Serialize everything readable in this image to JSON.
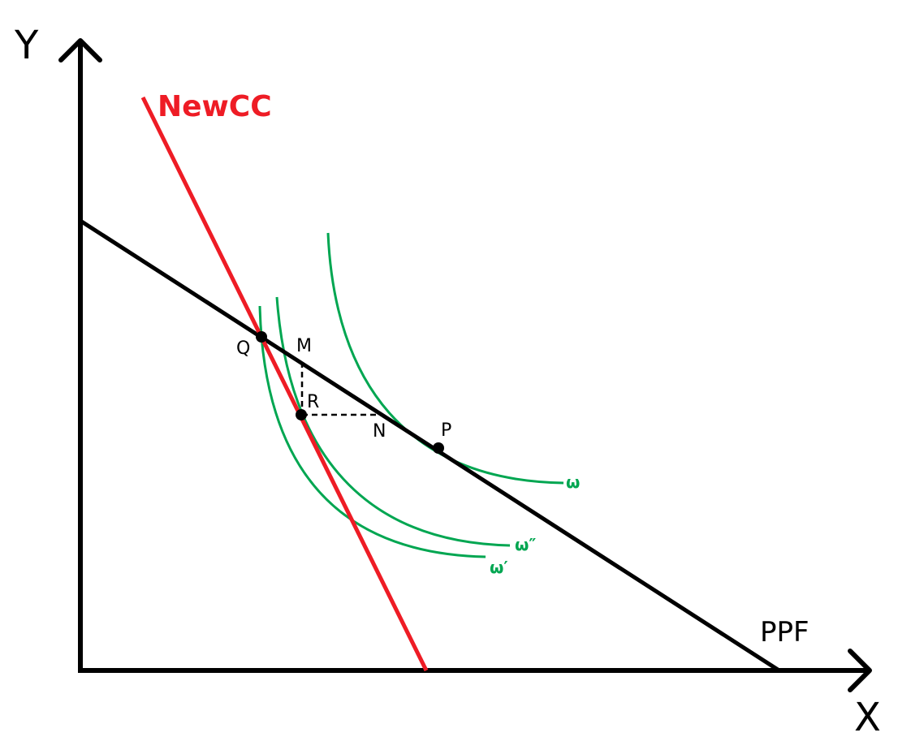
{
  "axes": {
    "y_label": "Y",
    "x_label": "X"
  },
  "lines": {
    "ppf_label": "PPF",
    "newcc_label": "NewCC"
  },
  "points": {
    "Q": "Q",
    "M": "M",
    "R": "R",
    "N": "N",
    "P": "P"
  },
  "curves": {
    "omega": "ω",
    "omega_double_prime": "ω″",
    "omega_prime": "ω′"
  },
  "colors": {
    "axis": "#000000",
    "ppf": "#000000",
    "newcc": "#ee1c25",
    "indifference": "#00a651"
  }
}
